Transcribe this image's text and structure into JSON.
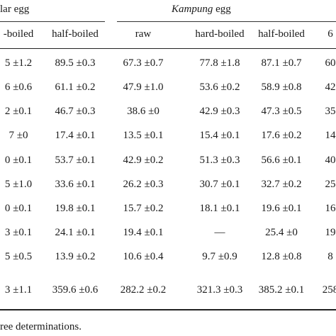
{
  "table": {
    "group_headers": [
      {
        "prefix": "",
        "label": "lar egg"
      },
      {
        "italic": "Kampung",
        "label": " egg"
      }
    ],
    "column_headers": [
      "-boiled",
      "half-boiled",
      "raw",
      "hard-boiled",
      "half-boiled",
      "6"
    ],
    "rows": [
      [
        "5 ±1.2",
        "89.5 ±0.3",
        "67.3 ±0.7",
        "77.8 ±1.8",
        "87.1 ±0.7",
        "60"
      ],
      [
        "6 ±0.6",
        "61.1 ±0.2",
        "47.9 ±1.0",
        "53.6 ±0.2",
        "58.9 ±0.8",
        "42"
      ],
      [
        "2 ±0.1",
        "46.7 ±0.3",
        "38.6 ±0",
        "42.9 ±0.3",
        "47.3 ±0.5",
        "35"
      ],
      [
        "7 ±0",
        "17.4 ±0.1",
        "13.5 ±0.1",
        "15.4 ±0.1",
        "17.6 ±0.2",
        "14"
      ],
      [
        "0 ±0.1",
        "53.7 ±0.1",
        "42.9 ±0.2",
        "51.3 ±0.3",
        "56.6 ±0.1",
        "40"
      ],
      [
        "5 ±1.0",
        "33.6 ±0.1",
        "26.2 ±0.3",
        "30.7 ±0.1",
        "32.7 ±0.2",
        "25"
      ],
      [
        "0 ±0.1",
        "19.8 ±0.1",
        "15.7 ±0.2",
        "18.1 ±0.1",
        "19.6 ±0.1",
        "16"
      ],
      [
        "3 ±0.1",
        "24.1 ±0.1",
        "19.4 ±0.1",
        "—",
        "25.4 ±0",
        "19"
      ],
      [
        "5 ±0.5",
        "13.9 ±0.2",
        "10.6 ±0.4",
        "9.7 ±0.9",
        "12.8 ±0.8",
        "8"
      ],
      [
        "3 ±1.1",
        "359.6 ±0.6",
        "282.2 ±0.2",
        "321.3 ±0.3",
        "385.2 ±0.1",
        "258"
      ]
    ],
    "footnote": "ree determinations."
  }
}
